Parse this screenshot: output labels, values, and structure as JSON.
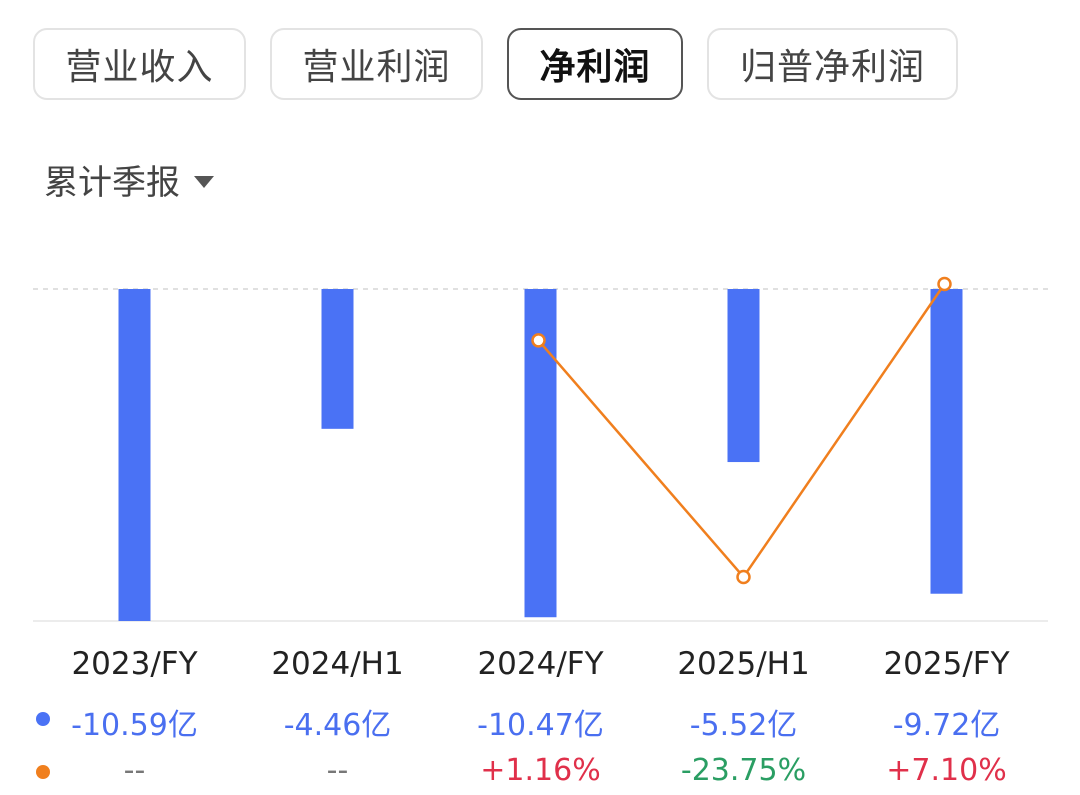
{
  "tabs": [
    {
      "label": "营业收入",
      "active": false
    },
    {
      "label": "营业利润",
      "active": false
    },
    {
      "label": "净利润",
      "active": true
    },
    {
      "label": "归普净利润",
      "active": false
    }
  ],
  "period_selector": {
    "label": "累计季报"
  },
  "colors": {
    "bar": "#4a72f5",
    "line": "#f07f1e",
    "positive": "#e0304a",
    "negative": "#2a9e63",
    "neutral": "#777777"
  },
  "chart_data": {
    "type": "bar",
    "categories": [
      "2023/FY",
      "2024/H1",
      "2024/FY",
      "2025/H1",
      "2025/FY"
    ],
    "series": [
      {
        "kind": "bar",
        "unit": "亿",
        "values": [
          -10.59,
          -4.46,
          -10.47,
          -5.52,
          -9.72
        ],
        "labels": [
          "-10.59亿",
          "-4.46亿",
          "-10.47亿",
          "-5.52亿",
          "-9.72亿"
        ]
      },
      {
        "kind": "line",
        "unit": "%",
        "values": [
          null,
          null,
          1.16,
          -23.75,
          7.1
        ],
        "labels": [
          "--",
          "--",
          "+1.16%",
          "-23.75%",
          "+7.10%"
        ]
      }
    ],
    "ylim": [
      -10.59,
      0
    ]
  }
}
